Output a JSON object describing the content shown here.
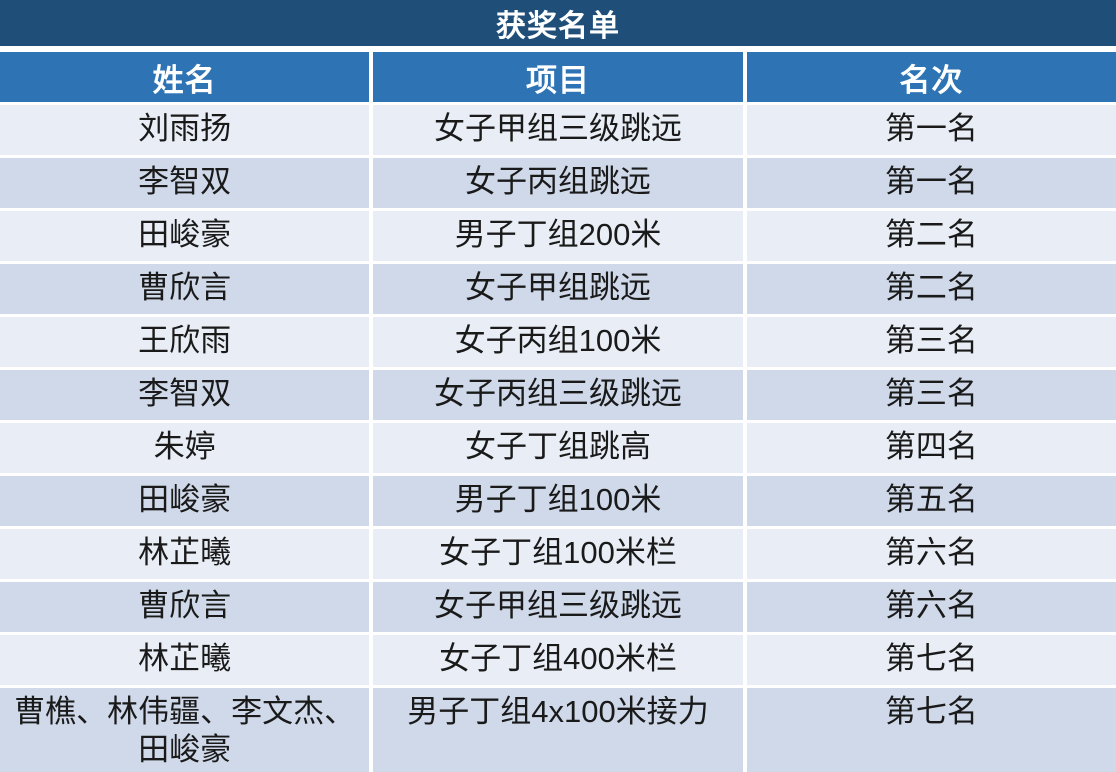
{
  "table": {
    "title": "获奖名单",
    "columns": [
      "姓名",
      "项目",
      "名次"
    ],
    "rows": [
      [
        "刘雨扬",
        "女子甲组三级跳远",
        "第一名"
      ],
      [
        "李智双",
        "女子丙组跳远",
        "第一名"
      ],
      [
        "田峻豪",
        "男子丁组200米",
        "第二名"
      ],
      [
        "曹欣言",
        "女子甲组跳远",
        "第二名"
      ],
      [
        "王欣雨",
        "女子丙组100米",
        "第三名"
      ],
      [
        "李智双",
        "女子丙组三级跳远",
        "第三名"
      ],
      [
        "朱婷",
        "女子丁组跳高",
        "第四名"
      ],
      [
        "田峻豪",
        "男子丁组100米",
        "第五名"
      ],
      [
        "林芷曦",
        "女子丁组100米栏",
        "第六名"
      ],
      [
        "曹欣言",
        "女子甲组三级跳远",
        "第六名"
      ],
      [
        "林芷曦",
        "女子丁组400米栏",
        "第七名"
      ],
      [
        "曹樵、林伟疆、李文杰、田峻豪",
        "男子丁组4x100米接力",
        "第七名"
      ]
    ],
    "colors": {
      "title_bg": "#1F4E79",
      "header_bg": "#2E74B5",
      "row_light": "#E9EEF6",
      "row_band": "#CFD9E9",
      "separator": "#FFFFFF",
      "header_text": "#FFFFFF",
      "body_text": "#1A1A1A"
    }
  }
}
